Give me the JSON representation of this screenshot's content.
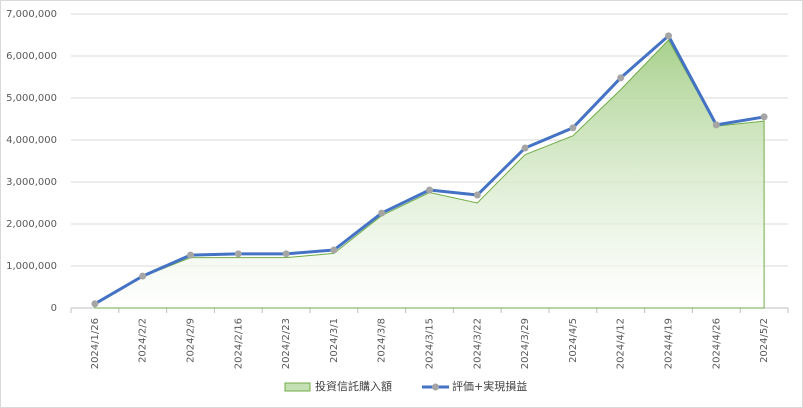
{
  "chart_data": {
    "type": "area-line",
    "categories": [
      "2024/1/26",
      "2024/2/2",
      "2024/2/9",
      "2024/2/16",
      "2024/2/23",
      "2024/3/1",
      "2024/3/8",
      "2024/3/15",
      "2024/3/22",
      "2024/3/29",
      "2024/4/5",
      "2024/4/12",
      "2024/4/19",
      "2024/4/26",
      "2024/5/2"
    ],
    "series": [
      {
        "name": "投資信託購入額",
        "type": "area",
        "color": "#70ad47",
        "values": [
          100000,
          750000,
          1200000,
          1200000,
          1200000,
          1300000,
          2200000,
          2750000,
          2500000,
          3650000,
          4100000,
          5200000,
          6380000,
          4330000,
          4450000
        ]
      },
      {
        "name": "評価+実現損益",
        "type": "line",
        "color": "#4472c4",
        "marker_color": "#a5a5a5",
        "values": [
          100000,
          760000,
          1260000,
          1290000,
          1290000,
          1380000,
          2260000,
          2810000,
          2690000,
          3810000,
          4290000,
          5480000,
          6480000,
          4360000,
          4550000
        ]
      }
    ],
    "ylim": [
      0,
      7000000
    ],
    "yticks": [
      0,
      {
        "value": 1000000,
        "label": "1,000,000"
      },
      {
        "value": 2000000,
        "label": "2,000,000"
      },
      {
        "value": 3000000,
        "label": "3,000,000"
      },
      {
        "value": 4000000,
        "label": "4,000,000"
      },
      {
        "value": 5000000,
        "label": "5,000,000"
      },
      {
        "value": 6000000,
        "label": "6,000,000"
      },
      {
        "value": 7000000,
        "label": "7,000,000"
      }
    ],
    "grid": true,
    "legend": "bottom"
  }
}
